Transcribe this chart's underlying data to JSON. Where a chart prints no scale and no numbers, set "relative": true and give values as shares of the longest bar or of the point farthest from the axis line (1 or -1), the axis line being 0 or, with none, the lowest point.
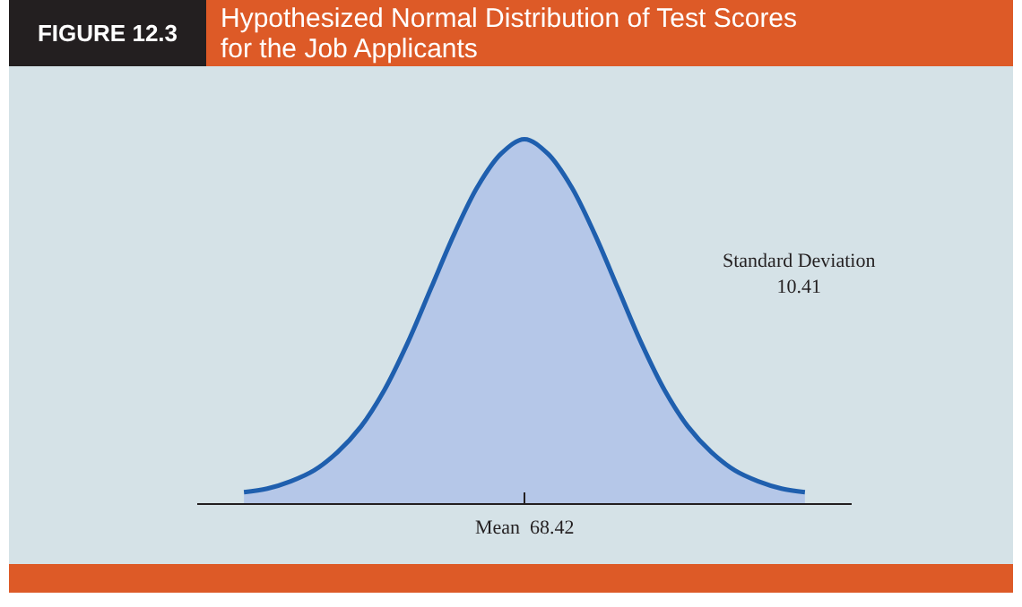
{
  "chart_data": {
    "type": "area",
    "title": "Hypothesized Normal Distribution of Test Scores for the Job Applicants",
    "relative": true,
    "color": "#1f5fae",
    "categories": [
      null,
      null,
      null,
      null,
      null,
      null,
      null,
      null,
      null,
      null,
      null,
      null,
      null,
      null,
      null,
      null,
      null,
      null,
      null,
      null,
      null,
      null,
      null,
      null,
      null,
      null,
      null,
      null,
      null
    ],
    "values": [
      null,
      null,
      0.03,
      0.04,
      0.06,
      0.09,
      0.14,
      0.21,
      0.31,
      0.44,
      0.59,
      0.74,
      0.87,
      0.96,
      1,
      0.96,
      0.87,
      0.74,
      0.59,
      0.44,
      0.31,
      0.21,
      0.14,
      0.09,
      0.06,
      0.04,
      0.03,
      null,
      null
    ],
    "annotations": [
      "FIGURE 12.3",
      "Mean  68.42",
      "Standard Deviation\n10.41"
    ],
    "grid": false
  }
}
